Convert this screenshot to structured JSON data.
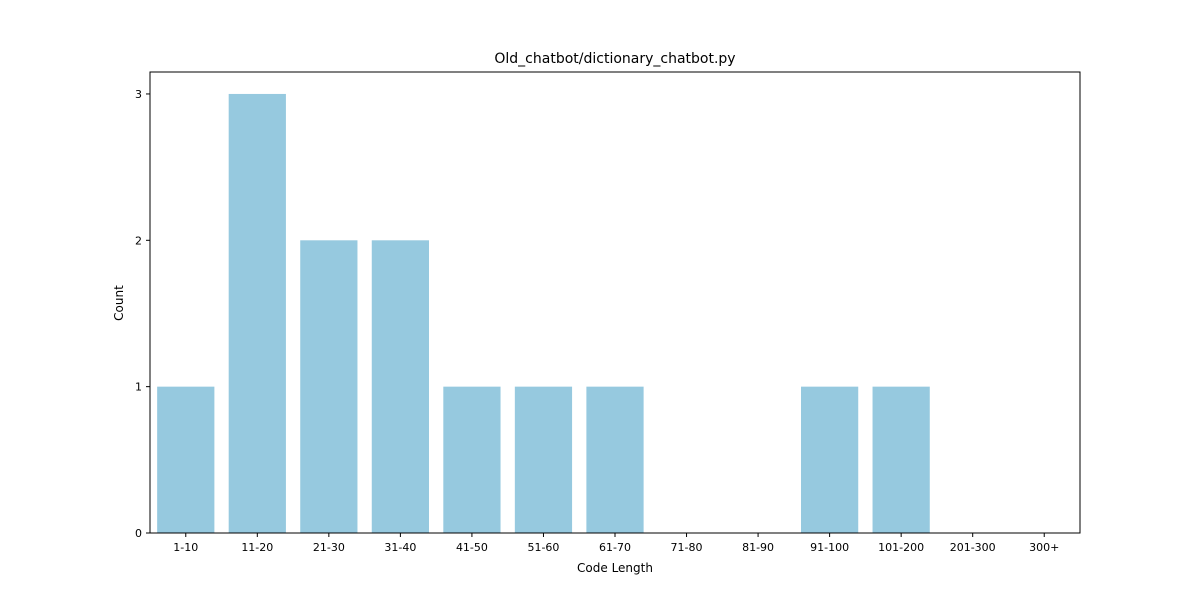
{
  "chart_data": {
    "type": "bar",
    "title": "Old_chatbot/dictionary_chatbot.py",
    "xlabel": "Code Length",
    "ylabel": "Count",
    "categories": [
      "1-10",
      "11-20",
      "21-30",
      "31-40",
      "41-50",
      "51-60",
      "61-70",
      "71-80",
      "81-90",
      "91-100",
      "101-200",
      "201-300",
      "300+"
    ],
    "values": [
      1,
      3,
      2,
      2,
      1,
      1,
      1,
      0,
      0,
      1,
      1,
      0,
      0
    ],
    "ylim": [
      0,
      3.15
    ],
    "yticks": [
      0,
      1,
      2,
      3
    ],
    "grid": false,
    "bar_color": "#96c9df"
  }
}
